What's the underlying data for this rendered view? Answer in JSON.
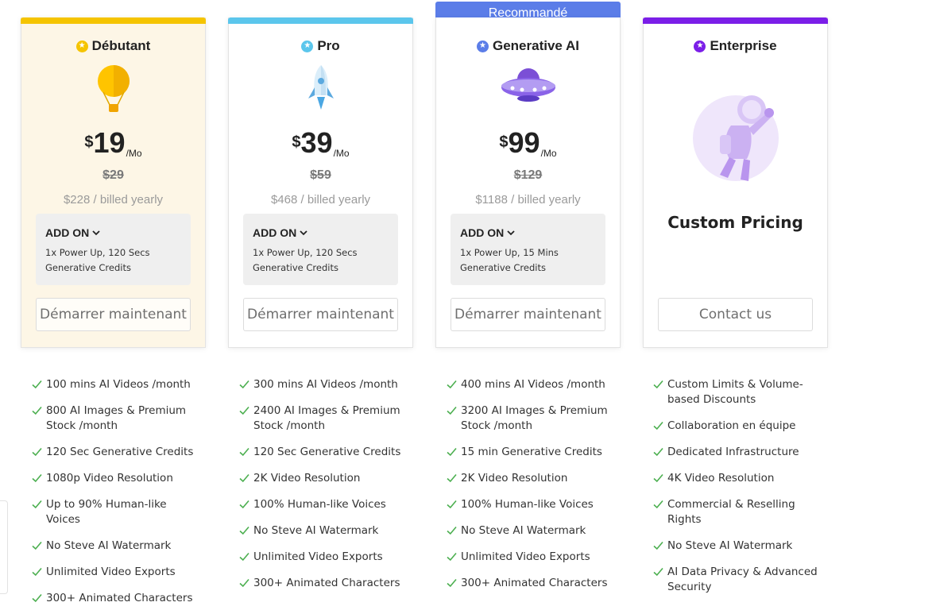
{
  "recommended_label": "Recommandé",
  "colors": {
    "debutant": "#f5c400",
    "pro": "#5bc6ec",
    "generative": "#5b7de8",
    "enterprise": "#7b1ee8",
    "check": "#4caf50"
  },
  "plans": [
    {
      "name": "Débutant",
      "illustration": "hot-air-balloon-icon",
      "currency": "$",
      "price": "19",
      "period": "/Mo",
      "old_price": "$29",
      "yearly": "$228 / billed yearly",
      "addon_label": "ADD ON",
      "addon_detail": "1x Power Up, 120 Secs Generative Credits",
      "cta": "Démarrer maintenant",
      "features": [
        "100 mins AI Videos /month",
        "800 AI Images & Premium Stock /month",
        "120 Sec Generative Credits",
        "1080p Video Resolution",
        "Up to 90% Human-like Voices",
        "No Steve AI Watermark",
        "Unlimited Video Exports",
        "300+ Animated Characters"
      ]
    },
    {
      "name": "Pro",
      "illustration": "rocket-icon",
      "currency": "$",
      "price": "39",
      "period": "/Mo",
      "old_price": "$59",
      "yearly": "$468 / billed yearly",
      "addon_label": "ADD ON",
      "addon_detail": "1x Power Up, 120 Secs Generative Credits",
      "cta": "Démarrer maintenant",
      "features": [
        "300 mins AI Videos /month",
        "2400 AI Images & Premium Stock /month",
        "120 Sec Generative Credits",
        "2K Video Resolution",
        "100% Human-like Voices",
        "No Steve AI Watermark",
        "Unlimited Video Exports",
        "300+ Animated Characters"
      ]
    },
    {
      "name": "Generative AI",
      "illustration": "ufo-icon",
      "currency": "$",
      "price": "99",
      "period": "/Mo",
      "old_price": "$129",
      "yearly": "$1188 / billed yearly",
      "addon_label": "ADD ON",
      "addon_detail": "1x Power Up, 15 Mins Generative Credits",
      "cta": "Démarrer maintenant",
      "features": [
        "400 mins AI Videos /month",
        "3200 AI Images & Premium Stock /month",
        "15 min Generative Credits",
        "2K Video Resolution",
        "100% Human-like Voices",
        "No Steve AI Watermark",
        "Unlimited Video Exports",
        "300+ Animated Characters"
      ]
    },
    {
      "name": "Enterprise",
      "illustration": "astronaut-icon",
      "custom_pricing": "Custom Pricing",
      "cta": "Contact us",
      "features": [
        "Custom Limits & Volume-based Discounts",
        "Collaboration en équipe",
        "Dedicated Infrastructure",
        "4K Video Resolution",
        "Commercial & Reselling Rights",
        "No Steve AI Watermark",
        "AI Data Privacy & Advanced Security"
      ]
    }
  ]
}
